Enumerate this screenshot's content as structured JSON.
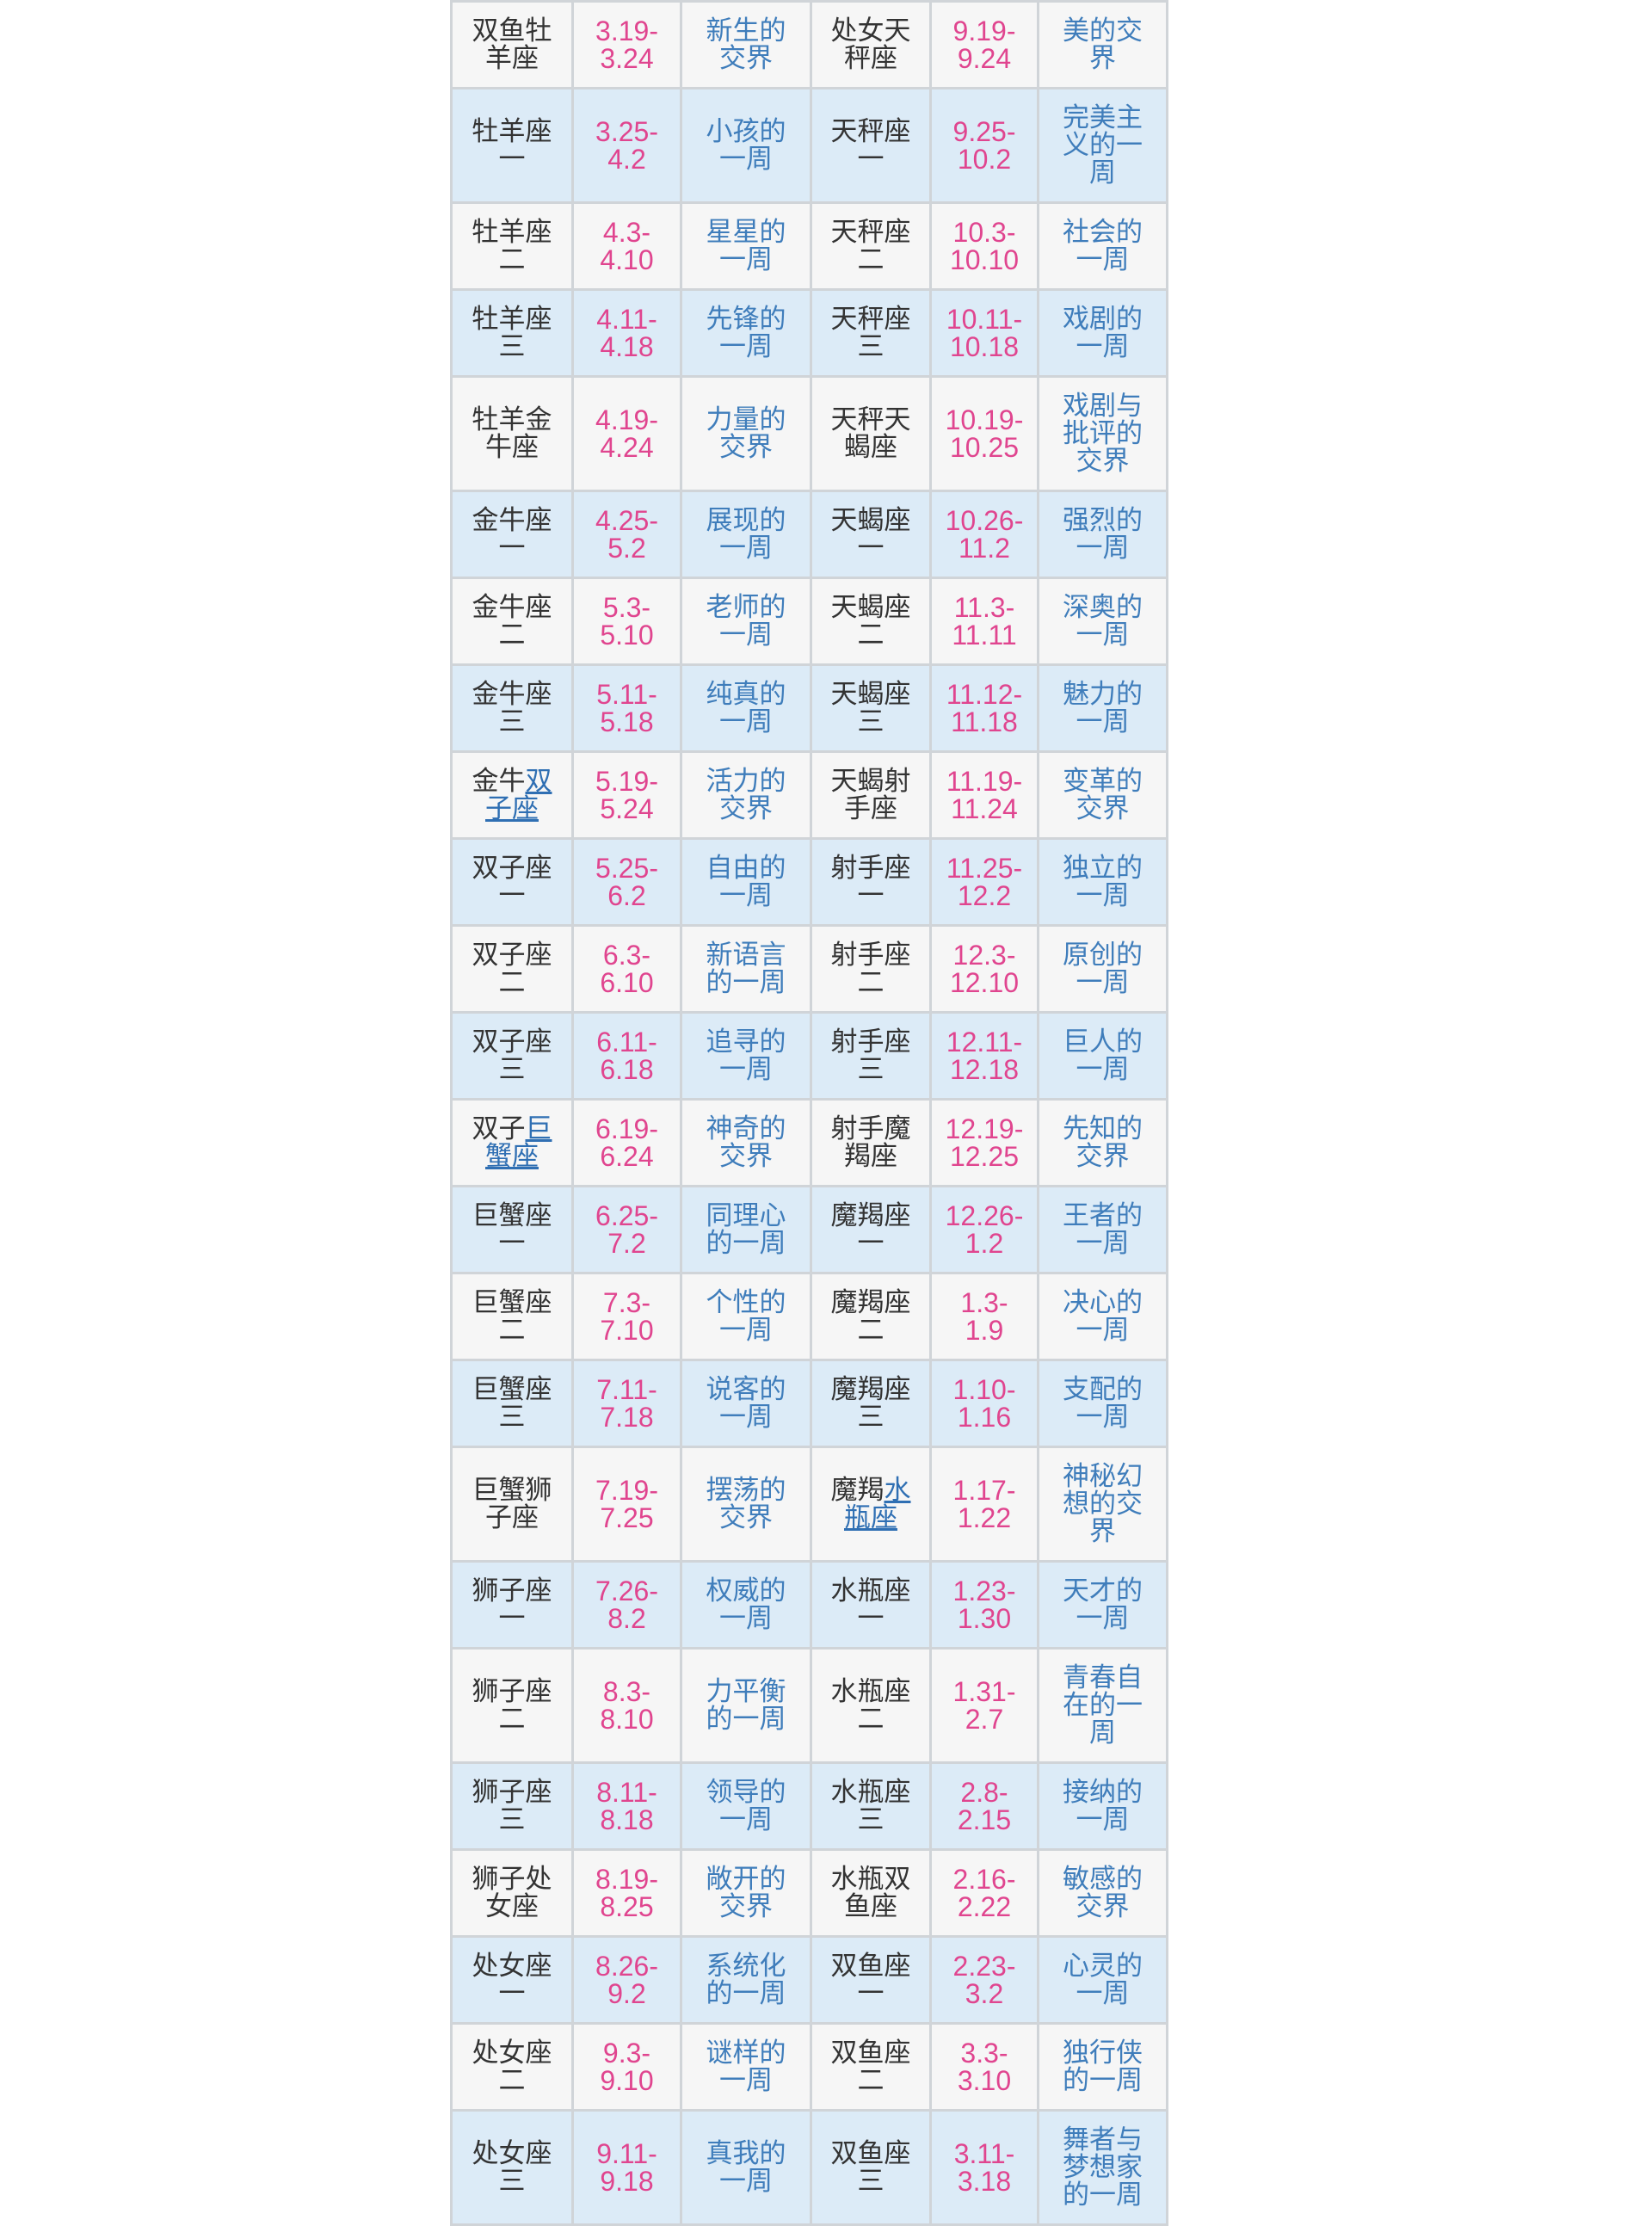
{
  "colors": {
    "date": "#e0458f",
    "description": "#3f7dbb",
    "link": "#2f6fb3",
    "row_blue": "#dcebf7",
    "row_gray": "#f6f6f6"
  },
  "rows": [
    {
      "a_name": "双鱼牡羊座",
      "a_link": "",
      "a_date": "3.19-3.24",
      "a_desc": "新生的交界",
      "b_name": "处女天秤座",
      "b_link": "",
      "b_date": "9.19-9.24",
      "b_desc": "美的交界"
    },
    {
      "a_name": "牡羊座一",
      "a_link": "",
      "a_date": "3.25-4.2",
      "a_desc": "小孩的一周",
      "b_name": "天秤座一",
      "b_link": "",
      "b_date": "9.25-10.2",
      "b_desc": "完美主义的一周"
    },
    {
      "a_name": "牡羊座二",
      "a_link": "",
      "a_date": "4.3-4.10",
      "a_desc": "星星的一周",
      "b_name": "天秤座二",
      "b_link": "",
      "b_date": "10.3-10.10",
      "b_desc": "社会的一周"
    },
    {
      "a_name": "牡羊座三",
      "a_link": "",
      "a_date": "4.11-4.18",
      "a_desc": "先锋的一周",
      "b_name": "天秤座三",
      "b_link": "",
      "b_date": "10.11-10.18",
      "b_desc": "戏剧的一周"
    },
    {
      "a_name": "牡羊金牛座",
      "a_link": "",
      "a_date": "4.19-4.24",
      "a_desc": "力量的交界",
      "b_name": "天秤天蝎座",
      "b_link": "",
      "b_date": "10.19-10.25",
      "b_desc": "戏剧与批评的交界"
    },
    {
      "a_name": "金牛座一",
      "a_link": "",
      "a_date": "4.25-5.2",
      "a_desc": "展现的一周",
      "b_name": "天蝎座一",
      "b_link": "",
      "b_date": "10.26-11.2",
      "b_desc": "强烈的一周"
    },
    {
      "a_name": "金牛座二",
      "a_link": "",
      "a_date": "5.3-5.10",
      "a_desc": "老师的一周",
      "b_name": "天蝎座二",
      "b_link": "",
      "b_date": "11.3-11.11",
      "b_desc": "深奥的一周"
    },
    {
      "a_name": "金牛座三",
      "a_link": "",
      "a_date": "5.11-5.18",
      "a_desc": "纯真的一周",
      "b_name": "天蝎座三",
      "b_link": "",
      "b_date": "11.12-11.18",
      "b_desc": "魅力的一周"
    },
    {
      "a_name": "金牛",
      "a_link": "双子座",
      "a_date": "5.19-5.24",
      "a_desc": "活力的交界",
      "b_name": "天蝎射手座",
      "b_link": "",
      "b_date": "11.19-11.24",
      "b_desc": "变革的交界"
    },
    {
      "a_name": "双子座一",
      "a_link": "",
      "a_date": "5.25-6.2",
      "a_desc": "自由的一周",
      "b_name": "射手座一",
      "b_link": "",
      "b_date": "11.25-12.2",
      "b_desc": "独立的一周"
    },
    {
      "a_name": "双子座二",
      "a_link": "",
      "a_date": "6.3-6.10",
      "a_desc": "新语言的一周",
      "b_name": "射手座二",
      "b_link": "",
      "b_date": "12.3-12.10",
      "b_desc": "原创的一周"
    },
    {
      "a_name": "双子座三",
      "a_link": "",
      "a_date": "6.11-6.18",
      "a_desc": "追寻的一周",
      "b_name": "射手座三",
      "b_link": "",
      "b_date": "12.11-12.18",
      "b_desc": "巨人的一周"
    },
    {
      "a_name": "双子",
      "a_link": "巨蟹座",
      "a_date": "6.19-6.24",
      "a_desc": "神奇的交界",
      "b_name": "射手魔羯座",
      "b_link": "",
      "b_date": "12.19-12.25",
      "b_desc": "先知的交界"
    },
    {
      "a_name": "巨蟹座一",
      "a_link": "",
      "a_date": "6.25-7.2",
      "a_desc": "同理心的一周",
      "b_name": "魔羯座一",
      "b_link": "",
      "b_date": "12.26-1.2",
      "b_desc": "王者的一周"
    },
    {
      "a_name": "巨蟹座二",
      "a_link": "",
      "a_date": "7.3-7.10",
      "a_desc": "个性的一周",
      "b_name": "魔羯座二",
      "b_link": "",
      "b_date": "1.3-1.9",
      "b_desc": "决心的一周"
    },
    {
      "a_name": "巨蟹座三",
      "a_link": "",
      "a_date": "7.11-7.18",
      "a_desc": "说客的一周",
      "b_name": "魔羯座三",
      "b_link": "",
      "b_date": "1.10-1.16",
      "b_desc": "支配的一周"
    },
    {
      "a_name": "巨蟹狮子座",
      "a_link": "",
      "a_date": "7.19-7.25",
      "a_desc": "摆荡的交界",
      "b_name": "魔羯",
      "b_link": "水瓶座",
      "b_date": "1.17-1.22",
      "b_desc": "神秘幻想的交界"
    },
    {
      "a_name": "狮子座一",
      "a_link": "",
      "a_date": "7.26-8.2",
      "a_desc": "权威的一周",
      "b_name": "水瓶座一",
      "b_link": "",
      "b_date": "1.23-1.30",
      "b_desc": "天才的一周"
    },
    {
      "a_name": "狮子座二",
      "a_link": "",
      "a_date": "8.3-8.10",
      "a_desc": "力平衡的一周",
      "b_name": "水瓶座二",
      "b_link": "",
      "b_date": "1.31-2.7",
      "b_desc": "青春自在的一周"
    },
    {
      "a_name": "狮子座三",
      "a_link": "",
      "a_date": "8.11-8.18",
      "a_desc": "领导的一周",
      "b_name": "水瓶座三",
      "b_link": "",
      "b_date": "2.8-2.15",
      "b_desc": "接纳的一周"
    },
    {
      "a_name": "狮子处女座",
      "a_link": "",
      "a_date": "8.19-8.25",
      "a_desc": "敞开的交界",
      "b_name": "水瓶双鱼座",
      "b_link": "",
      "b_date": "2.16-2.22",
      "b_desc": "敏感的交界"
    },
    {
      "a_name": "处女座一",
      "a_link": "",
      "a_date": "8.26-9.2",
      "a_desc": "系统化的一周",
      "b_name": "双鱼座一",
      "b_link": "",
      "b_date": "2.23-3.2",
      "b_desc": "心灵的一周"
    },
    {
      "a_name": "处女座二",
      "a_link": "",
      "a_date": "9.3-9.10",
      "a_desc": "谜样的一周",
      "b_name": "双鱼座二",
      "b_link": "",
      "b_date": "3.3-3.10",
      "b_desc": "独行侠的一周"
    },
    {
      "a_name": "处女座三",
      "a_link": "",
      "a_date": "9.11-9.18",
      "a_desc": "真我的一周",
      "b_name": "双鱼座三",
      "b_link": "",
      "b_date": "3.11-3.18",
      "b_desc": "舞者与梦想家的一周"
    }
  ]
}
